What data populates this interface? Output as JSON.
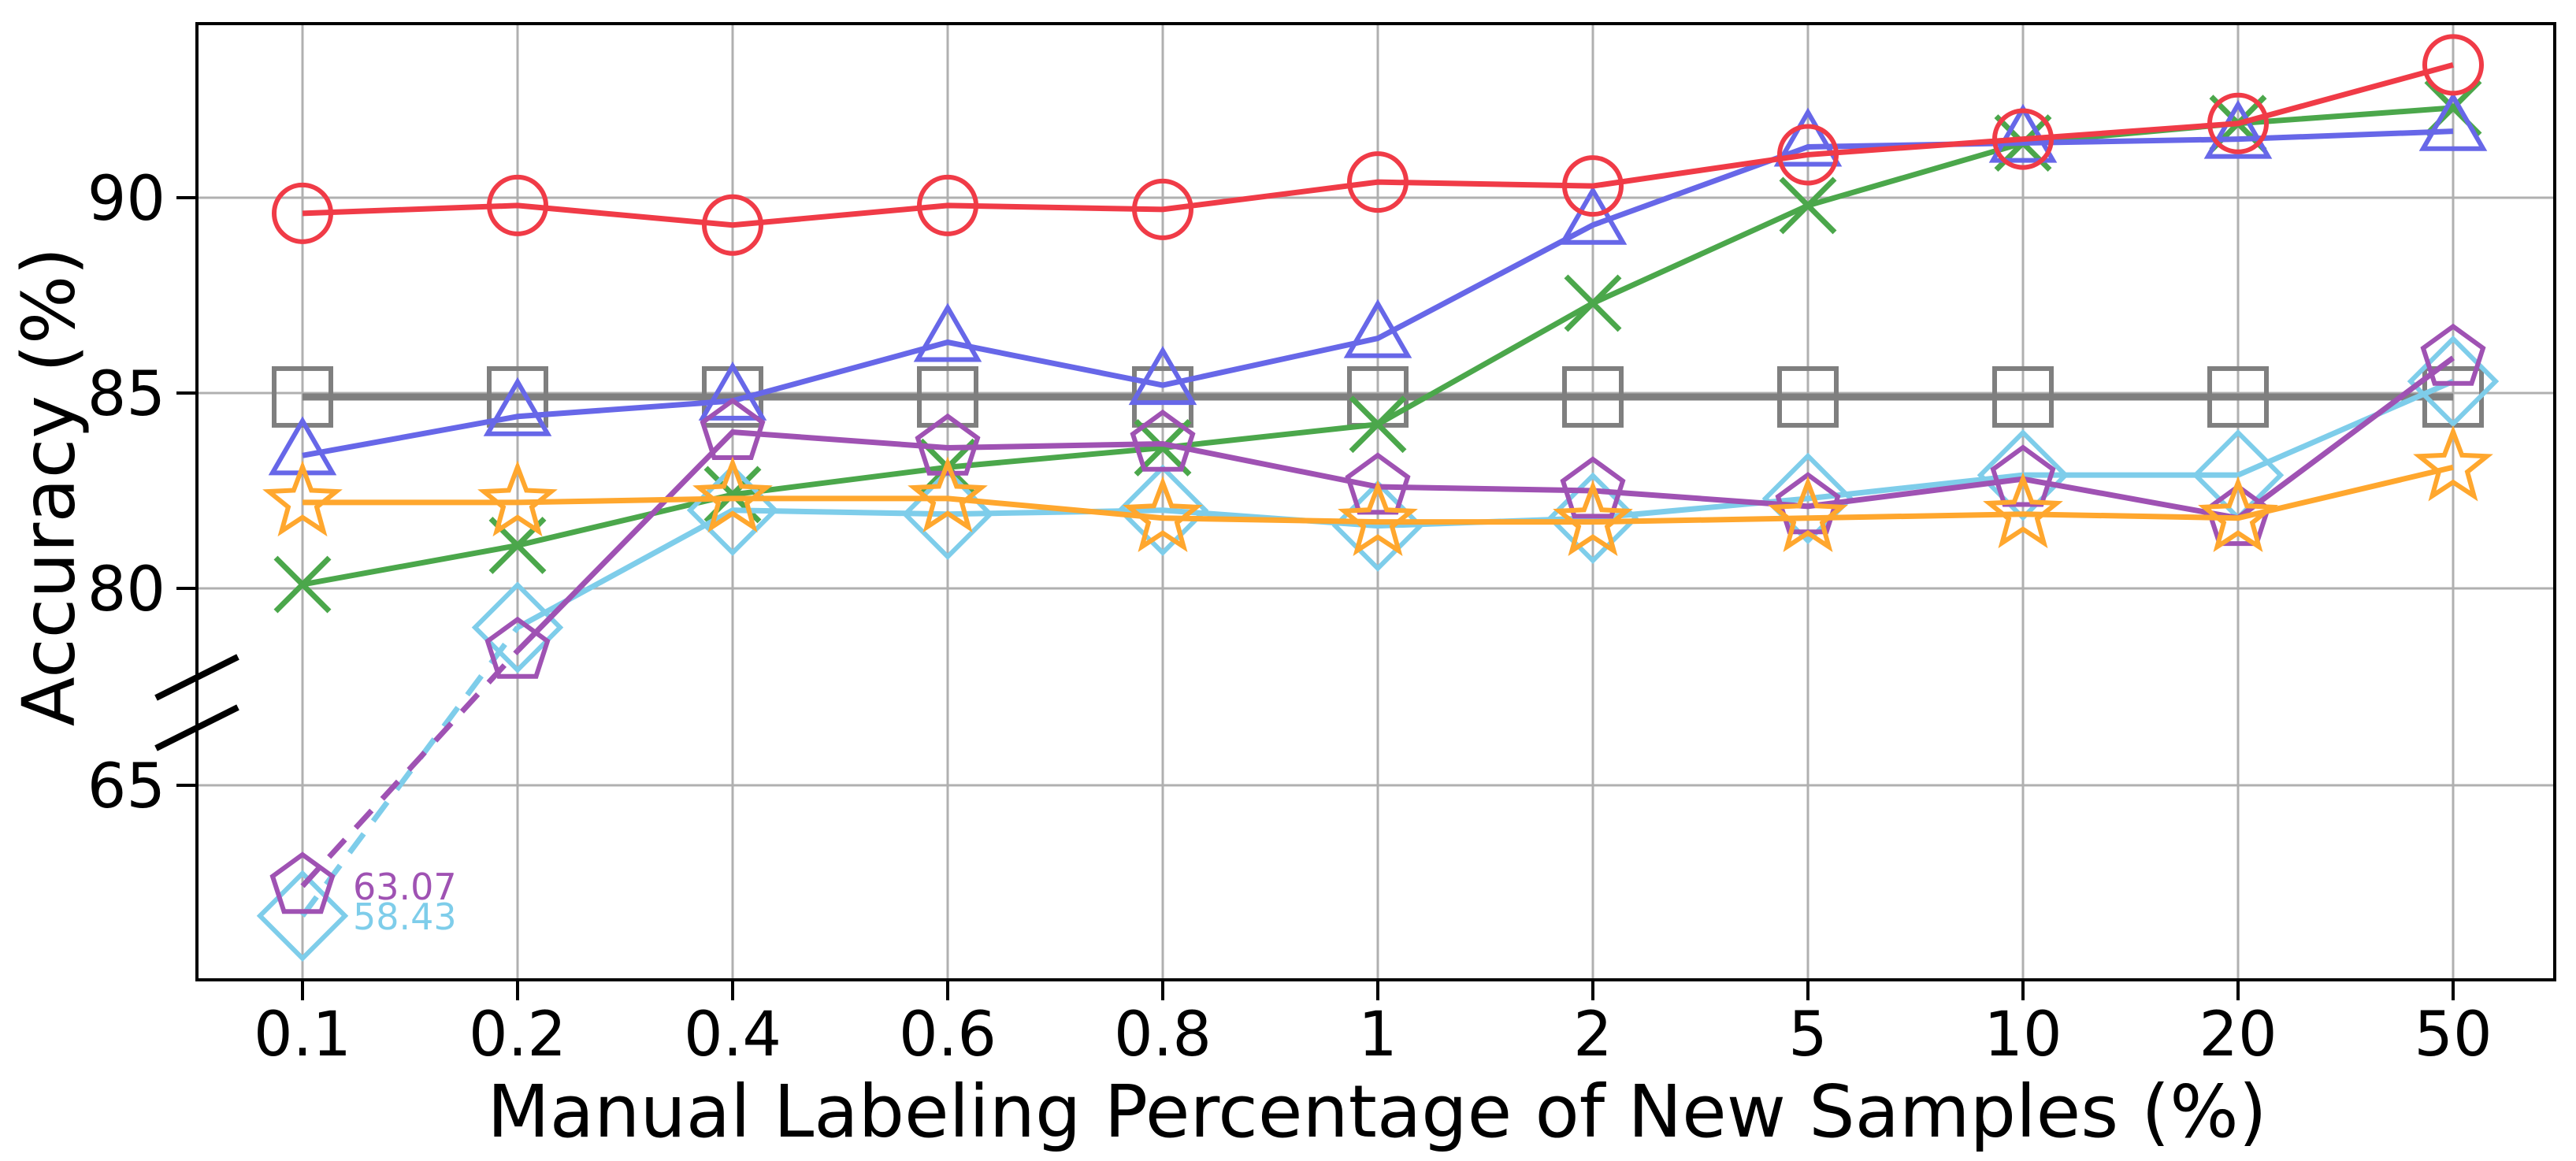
{
  "chart_data": {
    "type": "line",
    "title": "",
    "xlabel": "Manual Labeling Percentage of New Samples (%)",
    "ylabel": "Accuracy (%)",
    "x_categories": [
      "0.1",
      "0.2",
      "0.4",
      "0.6",
      "0.8",
      "1",
      "2",
      "5",
      "10",
      "20",
      "50"
    ],
    "x_scale": "categorical-even-spacing",
    "grid": true,
    "legend": "none",
    "y_axis": {
      "top_segment": {
        "ticks": [
          90,
          85,
          80
        ],
        "range": [
          76.0,
          94.5
        ]
      },
      "bottom_segment": {
        "ticks": [
          65
        ],
        "range": [
          61.3,
          66.8
        ]
      },
      "broken": true,
      "break_between": [
        66.8,
        76.0
      ]
    },
    "series": [
      {
        "id": "gray-square",
        "marker": "square",
        "color": "#7f7f7f",
        "line_style": "solid",
        "values": [
          84.9,
          84.9,
          84.9,
          84.9,
          84.9,
          84.9,
          84.9,
          84.9,
          84.9,
          84.9,
          84.9
        ]
      },
      {
        "id": "green-x",
        "marker": "x",
        "color": "#4ba74b",
        "line_style": "solid",
        "values": [
          80.1,
          81.1,
          82.4,
          83.1,
          83.6,
          84.2,
          87.3,
          89.8,
          91.4,
          91.9,
          92.3
        ]
      },
      {
        "id": "blue-triangle",
        "marker": "triangle",
        "color": "#6767e8",
        "line_style": "solid",
        "values": [
          83.4,
          84.4,
          84.8,
          86.3,
          85.2,
          86.4,
          89.3,
          91.3,
          91.4,
          91.5,
          91.7
        ]
      },
      {
        "id": "red-circle",
        "marker": "circle",
        "color": "#f03b47",
        "line_style": "solid",
        "values": [
          89.6,
          89.8,
          89.3,
          89.8,
          89.7,
          90.4,
          90.3,
          91.1,
          91.5,
          91.9,
          93.4
        ]
      },
      {
        "id": "skyblue-diamond",
        "marker": "diamond",
        "color": "#7ecdea",
        "line_style": "solid",
        "first_segment_dashed": true,
        "values": [
          58.43,
          79.0,
          82.0,
          81.9,
          82.0,
          81.6,
          81.8,
          82.3,
          82.9,
          82.9,
          85.3
        ],
        "display_overrides": {
          "0": 62.5
        }
      },
      {
        "id": "purple-pentagon",
        "marker": "pentagon",
        "color": "#9f52b3",
        "line_style": "solid",
        "first_segment_dashed": true,
        "values": [
          63.07,
          78.4,
          84.0,
          83.6,
          83.7,
          82.6,
          82.5,
          82.1,
          82.8,
          81.8,
          85.9
        ]
      },
      {
        "id": "orange-star",
        "marker": "star",
        "color": "#ffa72e",
        "line_style": "solid",
        "values": [
          82.2,
          82.2,
          82.3,
          82.3,
          81.8,
          81.7,
          81.7,
          81.8,
          81.9,
          81.8,
          83.1
        ]
      }
    ],
    "annotations": [
      {
        "id": "purple-pentagon-first-value",
        "text": "63.07",
        "color": "#9f52b3",
        "x_index": 0,
        "series": "purple-pentagon"
      },
      {
        "id": "skyblue-diamond-first-value",
        "text": "58.43",
        "color": "#7ecdea",
        "x_index": 0,
        "series": "skyblue-diamond"
      }
    ],
    "style": {
      "grid_color": "#b0b0b0",
      "spine_color": "#000000",
      "background": "#ffffff"
    }
  }
}
